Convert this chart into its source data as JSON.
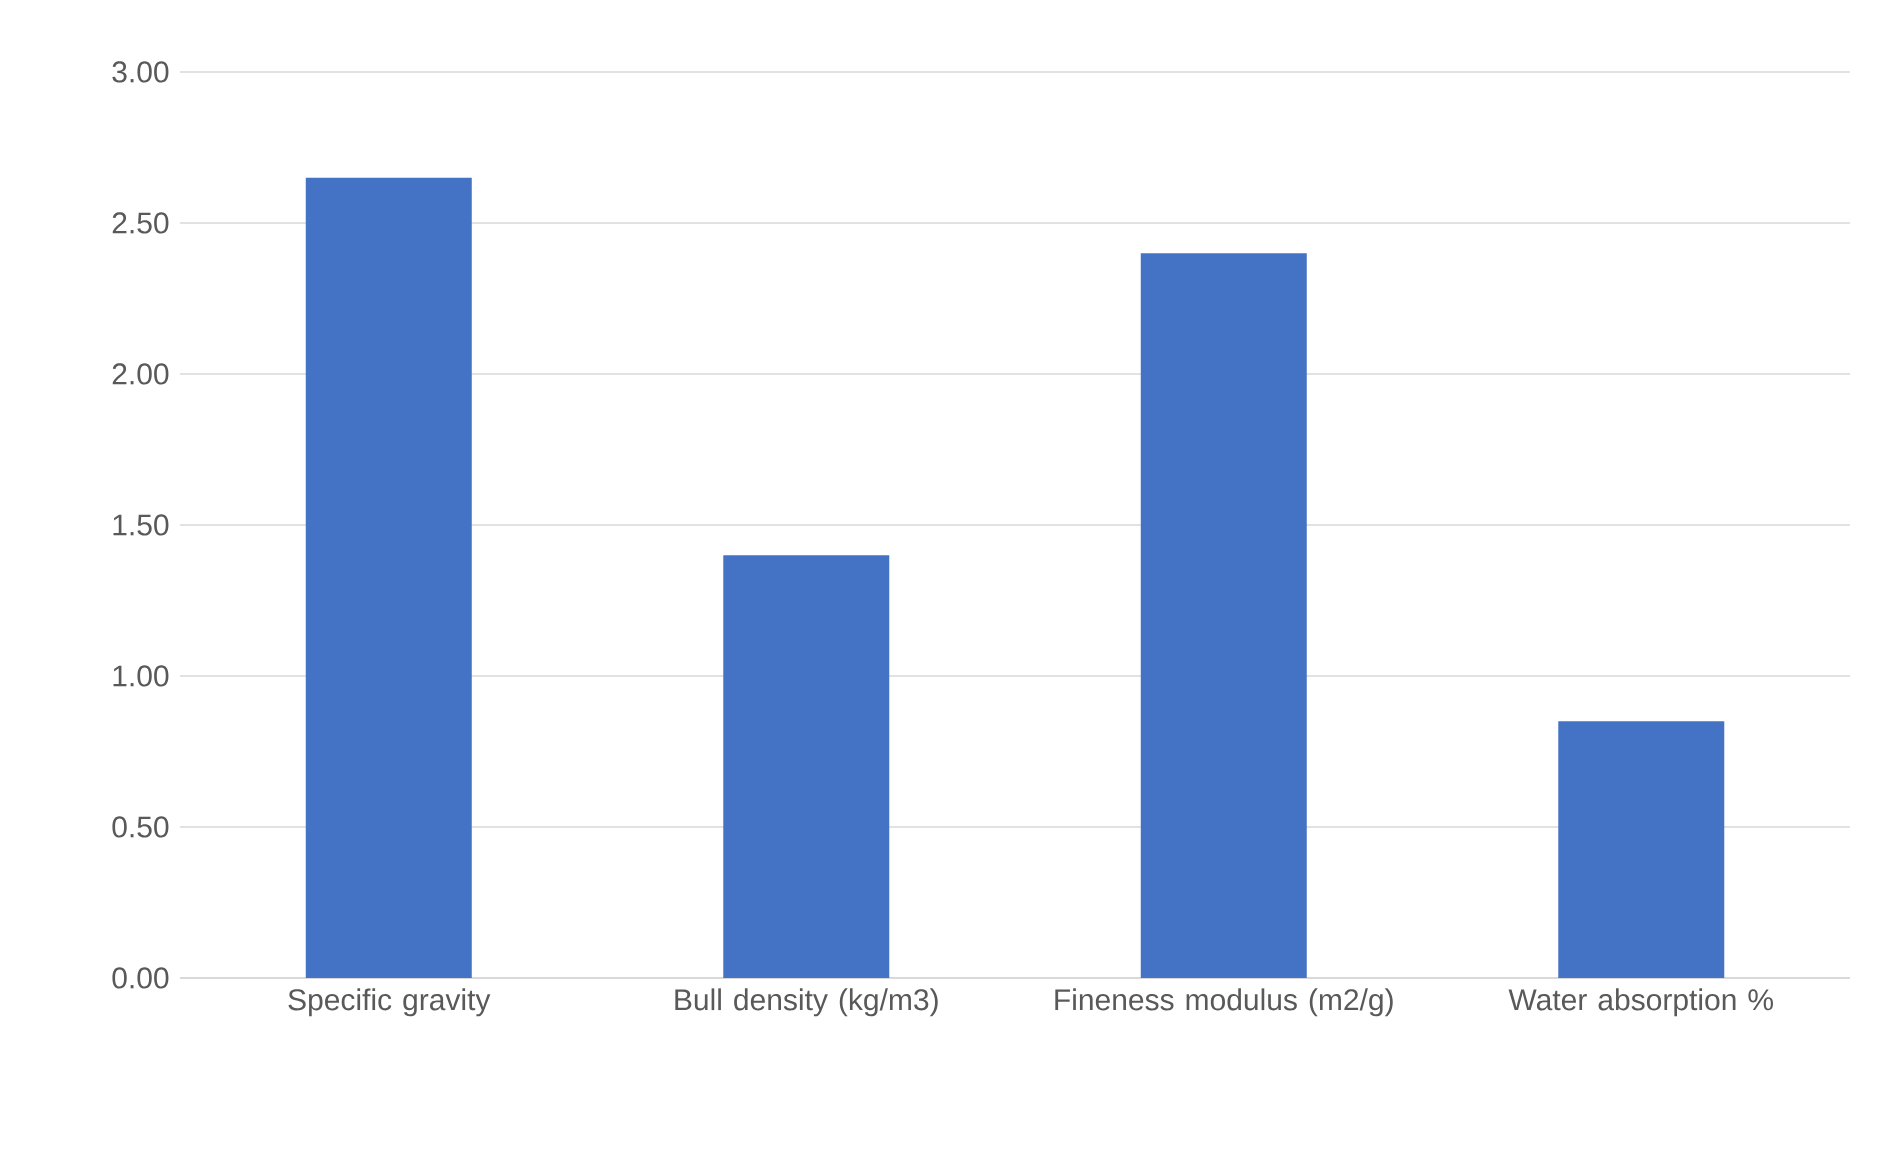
{
  "chart_data": {
    "type": "bar",
    "categories": [
      "Specific gravity",
      "Bull density (kg/m3)",
      "Fineness modulus (m2/g)",
      "Water absorption %"
    ],
    "values": [
      2.65,
      1.4,
      2.4,
      0.85
    ],
    "color": "#4472c4",
    "ylim": [
      0,
      3
    ],
    "yticks": [
      {
        "value": 0,
        "label": "0.00"
      },
      {
        "value": 0.5,
        "label": "0.50"
      },
      {
        "value": 1,
        "label": "1.00"
      },
      {
        "value": 1.5,
        "label": "1.50"
      },
      {
        "value": 2,
        "label": "2.00"
      },
      {
        "value": 2.5,
        "label": "2.50"
      },
      {
        "value": 3,
        "label": "3.00"
      }
    ],
    "grid": "y"
  }
}
